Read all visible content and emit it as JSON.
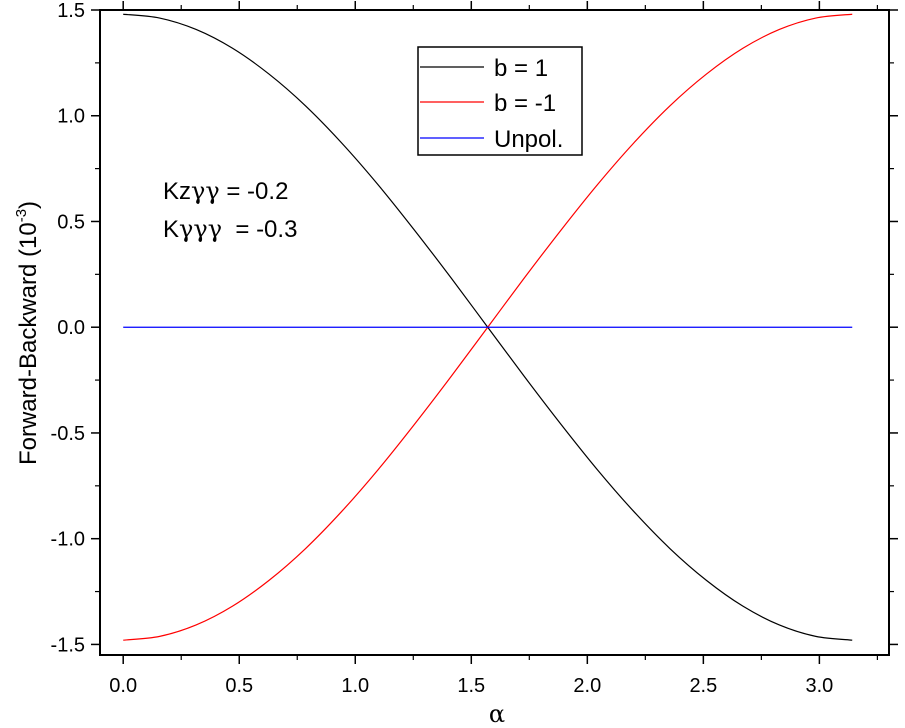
{
  "chart_data": {
    "type": "line",
    "xlabel": "α",
    "ylabel": "Forward-Backward (10",
    "ylabel_exponent": "-3",
    "ylabel_suffix": ")",
    "xlim": [
      -0.1,
      3.3
    ],
    "ylim": [
      -1.55,
      1.5
    ],
    "xticks": [
      0.0,
      0.5,
      1.0,
      1.5,
      2.0,
      2.5,
      3.0
    ],
    "xtick_labels": [
      "0.0",
      "0.5",
      "1.0",
      "1.5",
      "2.0",
      "2.5",
      "3.0"
    ],
    "yticks": [
      1.5,
      1.0,
      0.5,
      0.0,
      -0.5,
      -1.0,
      -1.5
    ],
    "ytick_labels": [
      "1.5",
      "1.0",
      "0.5",
      "0.0",
      "-0.5",
      "-1.0",
      "-1.5"
    ],
    "x": [
      0.0,
      0.1571,
      0.3142,
      0.4712,
      0.6283,
      0.7854,
      0.9425,
      1.0996,
      1.2566,
      1.4137,
      1.5708,
      1.7279,
      1.885,
      2.042,
      2.1991,
      2.3562,
      2.5133,
      2.6704,
      2.8274,
      2.9845,
      3.1416
    ],
    "series": [
      {
        "name": "b = 1",
        "color": "#000000",
        "values": [
          1.48,
          1.462,
          1.408,
          1.319,
          1.197,
          1.047,
          0.87,
          0.672,
          0.457,
          0.232,
          0.0,
          -0.232,
          -0.457,
          -0.672,
          -0.87,
          -1.047,
          -1.197,
          -1.319,
          -1.408,
          -1.462,
          -1.48
        ]
      },
      {
        "name": "b = -1",
        "color": "#ff0000",
        "values": [
          -1.48,
          -1.462,
          -1.408,
          -1.319,
          -1.197,
          -1.047,
          -0.87,
          -0.672,
          -0.457,
          -0.232,
          0.0,
          0.232,
          0.457,
          0.672,
          0.87,
          1.047,
          1.197,
          1.319,
          1.408,
          1.462,
          1.48
        ]
      },
      {
        "name": "Unpol.",
        "color": "#0000ff",
        "values": [
          0.0,
          0.0,
          0.0,
          0.0,
          0.0,
          0.0,
          0.0,
          0.0,
          0.0,
          0.0,
          0.0,
          0.0,
          0.0,
          0.0,
          0.0,
          0.0,
          0.0,
          0.0,
          0.0,
          0.0,
          0.0
        ]
      }
    ],
    "legend_position": "top-center",
    "annotations": [
      {
        "prefix": "Kz",
        "greek": "γγ",
        "suffix": " = -0.2"
      },
      {
        "prefix": "K",
        "greek": "γγγ",
        "suffix": "  = -0.3"
      }
    ],
    "grid": false
  }
}
